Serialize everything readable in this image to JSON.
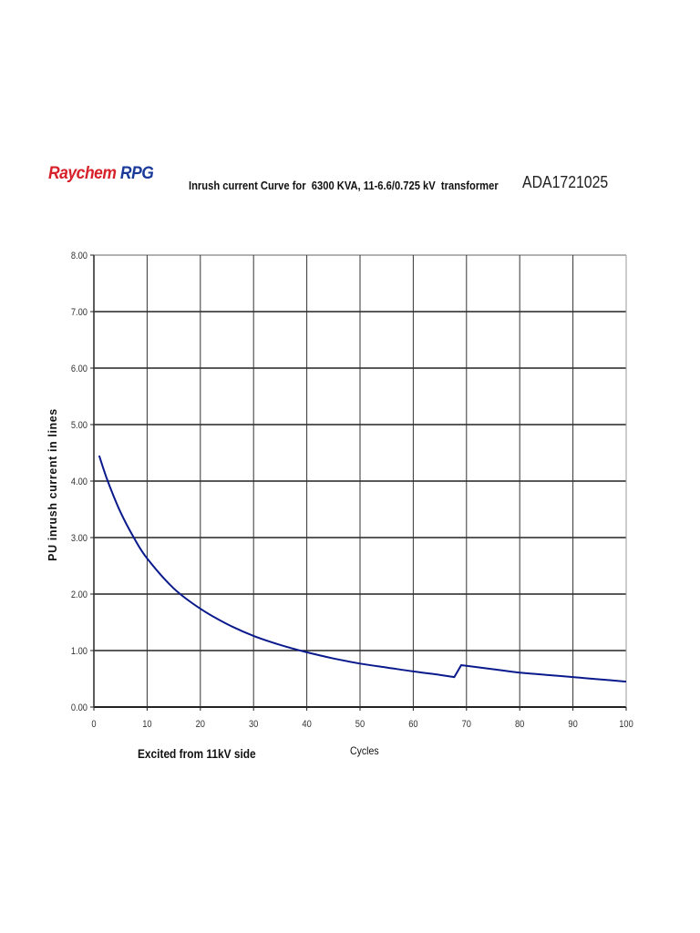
{
  "header": {
    "logo_part1": "Raychem",
    "logo_part2": "RPG",
    "title": "Inrush current Curve for  6300 KVA, 11-6.6/0.725 kV  transformer",
    "doc_id": "ADA1721025"
  },
  "footer": {
    "note": "Excited from 11kV side"
  },
  "colors": {
    "logo_red": "#d8202a",
    "logo_blue": "#1a3a9a",
    "curve": "#0a1a8c",
    "grid": "#222222"
  },
  "chart_data": {
    "type": "line",
    "title": "Inrush current Curve for  6300 KVA, 11-6.6/0.725 kV  transformer",
    "xlabel": "Cycles",
    "ylabel": "PU inrush current in lines",
    "xlim": [
      0,
      100
    ],
    "ylim": [
      0,
      8
    ],
    "x_ticks": [
      "0",
      "10",
      "20",
      "30",
      "40",
      "50",
      "60",
      "70",
      "80",
      "90",
      "100"
    ],
    "y_ticks": [
      "0.00",
      "1.00",
      "2.00",
      "3.00",
      "4.00",
      "5.00",
      "6.00",
      "7.00",
      "8.00"
    ],
    "grid": true,
    "legend": null,
    "series": [
      {
        "name": "PU inrush current",
        "x": [
          1,
          2.6,
          5,
          7.5,
          10,
          15,
          20,
          25,
          30,
          35,
          40,
          45,
          50,
          55,
          60,
          65,
          67.7,
          69,
          70,
          75,
          80,
          85,
          90,
          95,
          100
        ],
        "values": [
          4.45,
          4.0,
          3.45,
          3.0,
          2.63,
          2.1,
          1.74,
          1.47,
          1.26,
          1.1,
          0.97,
          0.86,
          0.77,
          0.7,
          0.63,
          0.57,
          0.53,
          0.74,
          0.73,
          0.67,
          0.61,
          0.57,
          0.53,
          0.49,
          0.45
        ]
      }
    ]
  }
}
